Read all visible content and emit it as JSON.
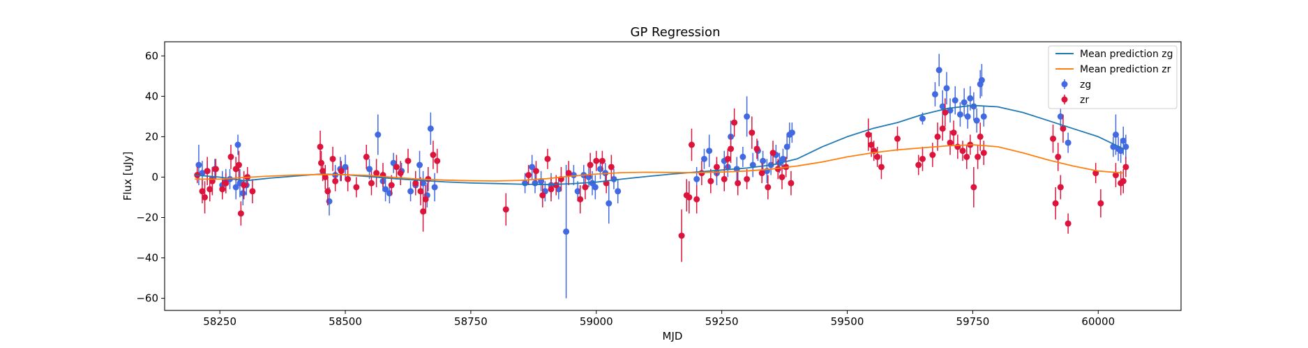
{
  "chart_data": {
    "type": "scatter",
    "title": "GP Regression",
    "xlabel": "MJD",
    "ylabel": "Flux [uJy]",
    "xlim": [
      58140,
      60165
    ],
    "ylim": [
      -66,
      67
    ],
    "xticks": [
      58250,
      58500,
      58750,
      59000,
      59250,
      59500,
      59750,
      60000
    ],
    "yticks": [
      -60,
      -40,
      -20,
      0,
      20,
      40,
      60
    ],
    "grid": false,
    "legend": {
      "placement": "top-right",
      "entries": [
        "Mean prediction zg",
        "Mean prediction zr",
        "zg",
        "zr"
      ]
    },
    "colors": {
      "mean_zg": "#1f77b4",
      "mean_zr": "#ff7f0e",
      "zg": "#4169e1",
      "zr": "#dc143c"
    },
    "series": [
      {
        "name": "Mean prediction zg",
        "type": "line",
        "x": [
          58200,
          58250,
          58300,
          58350,
          58400,
          58450,
          58500,
          58550,
          58600,
          58650,
          58700,
          58750,
          58800,
          58850,
          58900,
          58950,
          59000,
          59050,
          59100,
          59150,
          59200,
          59250,
          59300,
          59350,
          59400,
          59450,
          59500,
          59550,
          59600,
          59650,
          59700,
          59750,
          59800,
          59850,
          59900,
          59950,
          60000,
          60050
        ],
        "y": [
          1,
          0,
          -1.8,
          -0.5,
          0.5,
          1.5,
          1.2,
          0.2,
          -0.8,
          -1.6,
          -2.4,
          -2.9,
          -3.2,
          -3.5,
          -3.7,
          -3.3,
          -2.5,
          -1,
          0.3,
          1.5,
          2.5,
          3.5,
          4.5,
          6,
          9,
          15,
          20,
          24,
          27,
          31,
          34,
          35.5,
          34.8,
          32,
          28,
          24,
          20,
          14
        ]
      },
      {
        "name": "Mean prediction zr",
        "type": "line",
        "x": [
          58200,
          58250,
          58300,
          58350,
          58400,
          58450,
          58500,
          58550,
          58600,
          58650,
          58700,
          58750,
          58800,
          58850,
          58900,
          58950,
          59000,
          59050,
          59100,
          59150,
          59200,
          59250,
          59300,
          59350,
          59400,
          59450,
          59500,
          59550,
          59600,
          59650,
          59700,
          59750,
          59800,
          59850,
          59900,
          59950,
          60000,
          60050
        ],
        "y": [
          -1,
          -1,
          -0.2,
          0.5,
          1,
          1.3,
          1.2,
          0.8,
          -0.2,
          -1,
          -1.5,
          -1.8,
          -1.9,
          -1.6,
          -0.8,
          0.5,
          1.5,
          2.2,
          2.4,
          2.3,
          2.2,
          2.5,
          3,
          4,
          5.5,
          7.5,
          10,
          12,
          13.5,
          14.5,
          15.5,
          16,
          15,
          12,
          8.5,
          5.5,
          3,
          2
        ]
      },
      {
        "name": "zg",
        "type": "errorbar",
        "points": [
          [
            58208,
            6,
            10
          ],
          [
            58215,
            2,
            6
          ],
          [
            58225,
            3,
            5
          ],
          [
            58235,
            -1,
            6
          ],
          [
            58240,
            4,
            5
          ],
          [
            58255,
            -4,
            7
          ],
          [
            58262,
            -2,
            6
          ],
          [
            58270,
            -1,
            5
          ],
          [
            58282,
            -5,
            6
          ],
          [
            58286,
            16,
            5
          ],
          [
            58290,
            -3,
            7
          ],
          [
            58296,
            -8,
            6
          ],
          [
            58303,
            -4,
            5
          ],
          [
            58468,
            -12,
            7
          ],
          [
            58480,
            1,
            5
          ],
          [
            58490,
            4,
            6
          ],
          [
            58500,
            5,
            6
          ],
          [
            58548,
            4,
            5
          ],
          [
            58565,
            21,
            10
          ],
          [
            58575,
            -2,
            5
          ],
          [
            58580,
            -6,
            6
          ],
          [
            58588,
            -8,
            5
          ],
          [
            58596,
            7,
            5
          ],
          [
            58612,
            3,
            4
          ],
          [
            58630,
            -7,
            5
          ],
          [
            58640,
            -4,
            5
          ],
          [
            58648,
            6,
            7
          ],
          [
            58655,
            -3,
            6
          ],
          [
            58663,
            -9,
            6
          ],
          [
            58670,
            24,
            8
          ],
          [
            58678,
            -5,
            7
          ],
          [
            58858,
            -3,
            5
          ],
          [
            58872,
            5,
            6
          ],
          [
            58878,
            -3,
            5
          ],
          [
            58890,
            -2,
            5
          ],
          [
            58898,
            -7,
            5
          ],
          [
            58910,
            -4,
            6
          ],
          [
            58925,
            -6,
            5
          ],
          [
            58940,
            -27,
            33
          ],
          [
            58955,
            1,
            5
          ],
          [
            58963,
            -7,
            5
          ],
          [
            58975,
            1,
            5
          ],
          [
            58985,
            0,
            5
          ],
          [
            58992,
            -3,
            6
          ],
          [
            58998,
            -5,
            6
          ],
          [
            59008,
            4,
            5
          ],
          [
            59018,
            2,
            5
          ],
          [
            59025,
            -13,
            10
          ],
          [
            59035,
            -1,
            5
          ],
          [
            59043,
            -7,
            6
          ],
          [
            59200,
            -1,
            6
          ],
          [
            59215,
            9,
            5
          ],
          [
            59225,
            13,
            8
          ],
          [
            59240,
            2,
            6
          ],
          [
            59255,
            8,
            5
          ],
          [
            59262,
            5,
            5
          ],
          [
            59268,
            20,
            8
          ],
          [
            59280,
            4,
            6
          ],
          [
            59292,
            10,
            5
          ],
          [
            59300,
            30,
            10
          ],
          [
            59312,
            6,
            6
          ],
          [
            59322,
            13,
            5
          ],
          [
            59332,
            8,
            5
          ],
          [
            59340,
            3,
            6
          ],
          [
            59348,
            6,
            5
          ],
          [
            59358,
            11,
            5
          ],
          [
            59365,
            7,
            5
          ],
          [
            59372,
            9,
            5
          ],
          [
            59380,
            15,
            6
          ],
          [
            59385,
            21,
            6
          ],
          [
            59390,
            22,
            5
          ],
          [
            59650,
            29,
            3
          ],
          [
            59675,
            41,
            6
          ],
          [
            59683,
            53,
            8
          ],
          [
            59690,
            35,
            8
          ],
          [
            59698,
            44,
            8
          ],
          [
            59705,
            33,
            6
          ],
          [
            59715,
            38,
            7
          ],
          [
            59725,
            31,
            6
          ],
          [
            59733,
            37,
            7
          ],
          [
            59740,
            30,
            6
          ],
          [
            59745,
            39,
            6
          ],
          [
            59752,
            35,
            7
          ],
          [
            59758,
            28,
            6
          ],
          [
            59765,
            46,
            7
          ],
          [
            59768,
            48,
            8
          ],
          [
            59772,
            30,
            5
          ],
          [
            59925,
            30,
            5
          ],
          [
            59940,
            17,
            5
          ],
          [
            60030,
            15,
            5
          ],
          [
            60035,
            21,
            10
          ],
          [
            60040,
            14,
            6
          ],
          [
            60045,
            13,
            6
          ],
          [
            60050,
            18,
            7
          ],
          [
            60055,
            15,
            6
          ]
        ]
      },
      {
        "name": "zr",
        "type": "errorbar",
        "points": [
          [
            58205,
            1,
            4
          ],
          [
            58215,
            -7,
            6
          ],
          [
            58220,
            -10,
            8
          ],
          [
            58225,
            3,
            7
          ],
          [
            58230,
            -6,
            6
          ],
          [
            58235,
            -2,
            7
          ],
          [
            58242,
            4,
            5
          ],
          [
            58255,
            -6,
            5
          ],
          [
            58262,
            -3,
            5
          ],
          [
            58272,
            10,
            6
          ],
          [
            58282,
            4,
            6
          ],
          [
            58288,
            6,
            7
          ],
          [
            58292,
            -18,
            6
          ],
          [
            58298,
            -4,
            7
          ],
          [
            58305,
            0,
            5
          ],
          [
            58315,
            -7,
            6
          ],
          [
            58450,
            15,
            8
          ],
          [
            58452,
            7,
            6
          ],
          [
            58455,
            3,
            5
          ],
          [
            58460,
            0,
            6
          ],
          [
            58465,
            -7,
            7
          ],
          [
            58475,
            9,
            6
          ],
          [
            58480,
            -2,
            5
          ],
          [
            58492,
            3,
            5
          ],
          [
            58505,
            -1,
            6
          ],
          [
            58522,
            -5,
            5
          ],
          [
            58542,
            10,
            6
          ],
          [
            58552,
            -3,
            6
          ],
          [
            58562,
            2,
            7
          ],
          [
            58575,
            1,
            6
          ],
          [
            58592,
            -4,
            5
          ],
          [
            58602,
            5,
            6
          ],
          [
            58610,
            2,
            6
          ],
          [
            58625,
            8,
            6
          ],
          [
            58640,
            -3,
            6
          ],
          [
            58650,
            -7,
            7
          ],
          [
            58655,
            -17,
            10
          ],
          [
            58660,
            -11,
            7
          ],
          [
            58665,
            -1,
            6
          ],
          [
            58675,
            11,
            7
          ],
          [
            58683,
            8,
            6
          ],
          [
            58820,
            -16,
            8
          ],
          [
            58865,
            1,
            5
          ],
          [
            58880,
            3,
            5
          ],
          [
            58893,
            -9,
            6
          ],
          [
            58903,
            9,
            5
          ],
          [
            58910,
            -6,
            6
          ],
          [
            58920,
            -4,
            5
          ],
          [
            58930,
            -1,
            6
          ],
          [
            58945,
            2,
            6
          ],
          [
            58968,
            -11,
            7
          ],
          [
            58978,
            -5,
            6
          ],
          [
            58988,
            6,
            6
          ],
          [
            59000,
            8,
            5
          ],
          [
            59012,
            8,
            5
          ],
          [
            59020,
            -3,
            5
          ],
          [
            59030,
            5,
            6
          ],
          [
            59170,
            -29,
            13
          ],
          [
            59180,
            -9,
            8
          ],
          [
            59185,
            -10,
            8
          ],
          [
            59190,
            16,
            8
          ],
          [
            59200,
            -11,
            7
          ],
          [
            59210,
            2,
            6
          ],
          [
            59228,
            -2,
            6
          ],
          [
            59240,
            5,
            5
          ],
          [
            59255,
            -1,
            6
          ],
          [
            59262,
            9,
            5
          ],
          [
            59268,
            14,
            7
          ],
          [
            59275,
            27,
            7
          ],
          [
            59282,
            -3,
            6
          ],
          [
            59300,
            -1,
            5
          ],
          [
            59310,
            22,
            8
          ],
          [
            59320,
            14,
            5
          ],
          [
            59330,
            2,
            5
          ],
          [
            59342,
            -5,
            6
          ],
          [
            59352,
            12,
            6
          ],
          [
            59362,
            4,
            5
          ],
          [
            59370,
            0,
            6
          ],
          [
            59378,
            5,
            5
          ],
          [
            59388,
            -3,
            6
          ],
          [
            59542,
            21,
            8
          ],
          [
            59548,
            16,
            6
          ],
          [
            59553,
            13,
            5
          ],
          [
            59560,
            10,
            5
          ],
          [
            59568,
            5,
            6
          ],
          [
            59600,
            19,
            6
          ],
          [
            59642,
            6,
            5
          ],
          [
            59650,
            9,
            6
          ],
          [
            59670,
            11,
            6
          ],
          [
            59680,
            20,
            7
          ],
          [
            59690,
            24,
            6
          ],
          [
            59695,
            32,
            7
          ],
          [
            59705,
            17,
            6
          ],
          [
            59712,
            22,
            6
          ],
          [
            59720,
            15,
            6
          ],
          [
            59730,
            13,
            5
          ],
          [
            59738,
            10,
            6
          ],
          [
            59745,
            16,
            5
          ],
          [
            59752,
            -5,
            10
          ],
          [
            59760,
            10,
            6
          ],
          [
            59765,
            20,
            7
          ],
          [
            59772,
            12,
            6
          ],
          [
            59910,
            19,
            7
          ],
          [
            59915,
            -13,
            8
          ],
          [
            59920,
            10,
            7
          ],
          [
            59925,
            -5,
            6
          ],
          [
            59930,
            24,
            7
          ],
          [
            59940,
            -23,
            5
          ],
          [
            59995,
            2,
            5
          ],
          [
            60005,
            -13,
            7
          ],
          [
            60035,
            1,
            6
          ],
          [
            60045,
            -3,
            6
          ],
          [
            60050,
            -2,
            6
          ],
          [
            60055,
            5,
            5
          ]
        ]
      }
    ]
  }
}
